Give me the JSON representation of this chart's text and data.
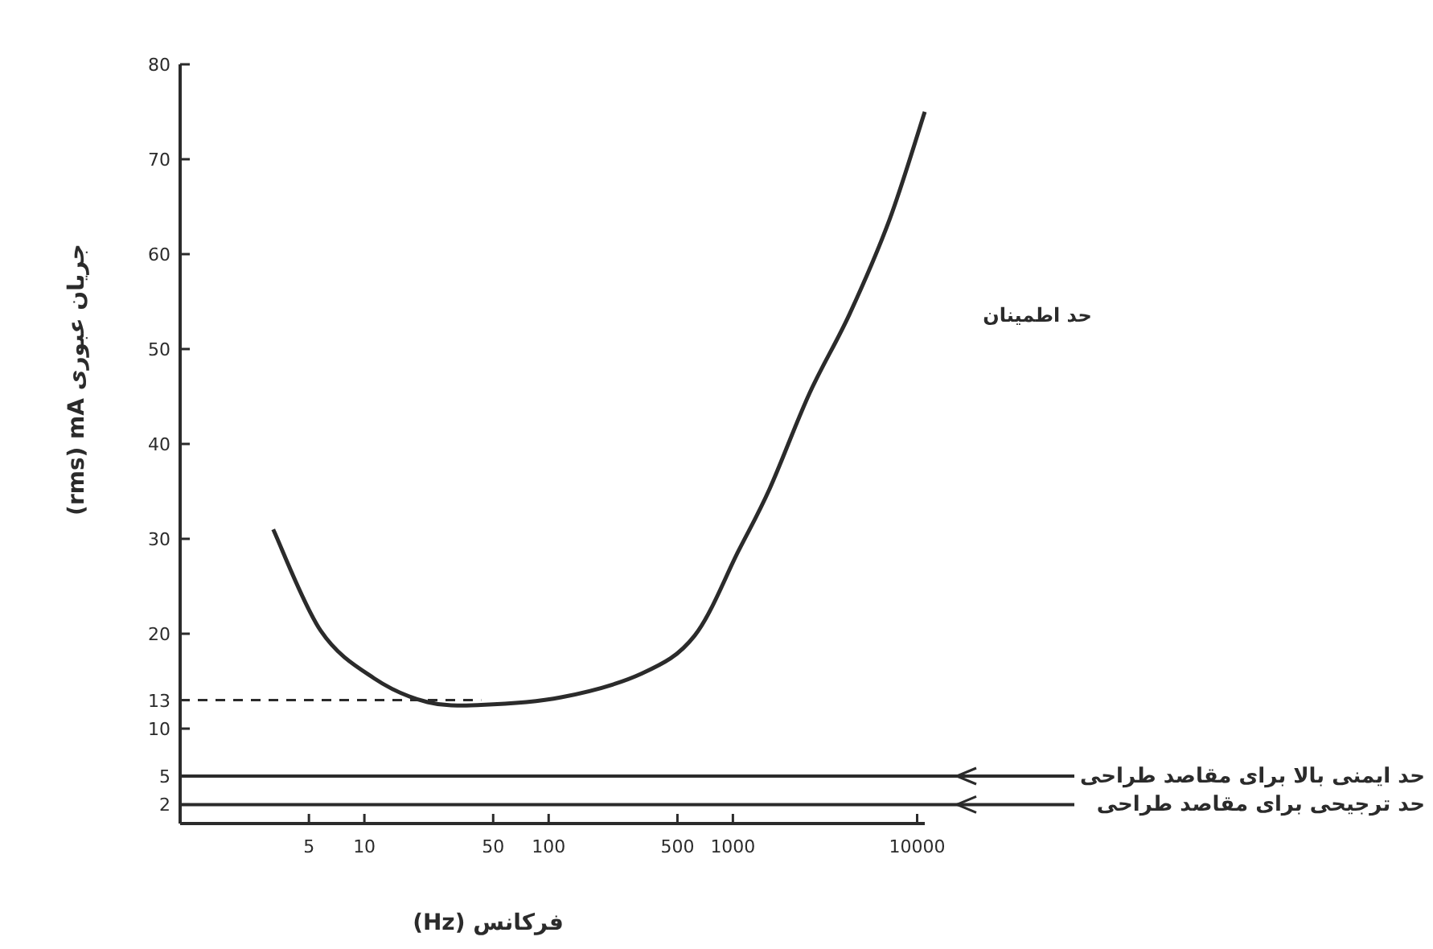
{
  "chart_data": {
    "type": "line",
    "xlabel": "فرکانس (Hz)",
    "ylabel": "(rms) mA جریان عبوری",
    "log": "x",
    "xlim": [
      1,
      11000
    ],
    "xticks": [
      5,
      10,
      50,
      100,
      500,
      1000,
      10000
    ],
    "ylim": [
      0,
      80
    ],
    "yticks": [
      2,
      5,
      10,
      13,
      20,
      30,
      40,
      50,
      60,
      70,
      80
    ],
    "series": [
      {
        "color": "#2b2b2b",
        "x": [
          3.2,
          5.8,
          11.3,
          22,
          43,
          117,
          320,
          620,
          1070,
          1585,
          2600,
          4300,
          7100,
          11000
        ],
        "values": [
          31,
          20.3,
          15.3,
          12.8,
          12.5,
          13.3,
          15.8,
          19.8,
          28.7,
          35.3,
          45.3,
          53.7,
          63.7,
          75
        ]
      }
    ],
    "ref_lines": [
      {
        "axis": "y",
        "value": 13,
        "line_style": "dashed"
      },
      {
        "axis": "y",
        "value": 5,
        "label": "حد ایمنی بالا برای مقاصد طراحی"
      },
      {
        "axis": "y",
        "value": 2,
        "label": "حد ترجیحی برای مقاصد طراحی"
      }
    ],
    "annotations": [
      "حد اطمینان"
    ],
    "grid": false,
    "marker": "none",
    "line_style": "solid"
  }
}
